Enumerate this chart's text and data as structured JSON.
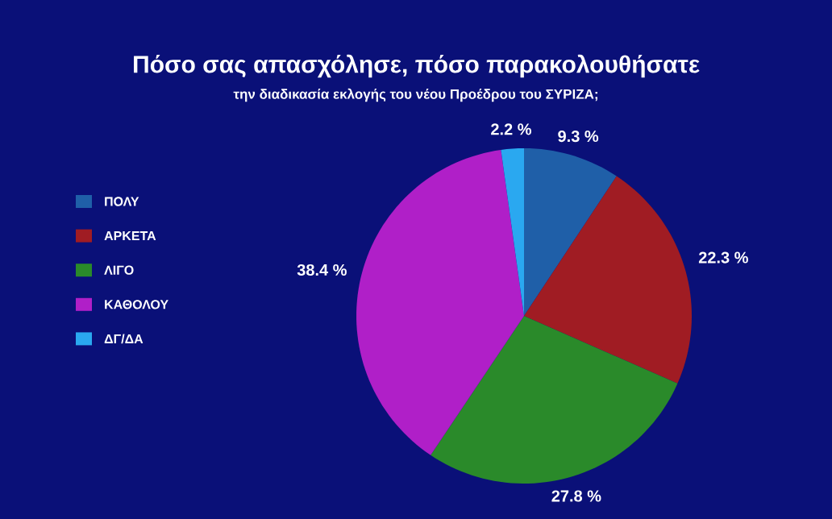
{
  "chart_data": {
    "type": "pie",
    "title": "Πόσο σας απασχόλησε, πόσο παρακολουθήσατε",
    "subtitle": "την διαδικασία εκλογής του νέου Προέδρου του ΣΥΡΙΖΑ;",
    "categories": [
      "ΠΟΛΥ",
      "ΑΡΚΕΤΑ",
      "ΛΙΓΟ",
      "ΚΑΘΟΛΟΥ",
      "ΔΓ/ΔΑ"
    ],
    "values": [
      9.3,
      22.3,
      27.8,
      38.4,
      2.2
    ],
    "value_labels": [
      "9.3 %",
      "22.3 %",
      "27.8 %",
      "38.4 %",
      "2.2 %"
    ],
    "colors": [
      "#1f5fa8",
      "#a01c23",
      "#2a8a2a",
      "#b01fc8",
      "#2aa8f0"
    ],
    "legend": "left"
  }
}
